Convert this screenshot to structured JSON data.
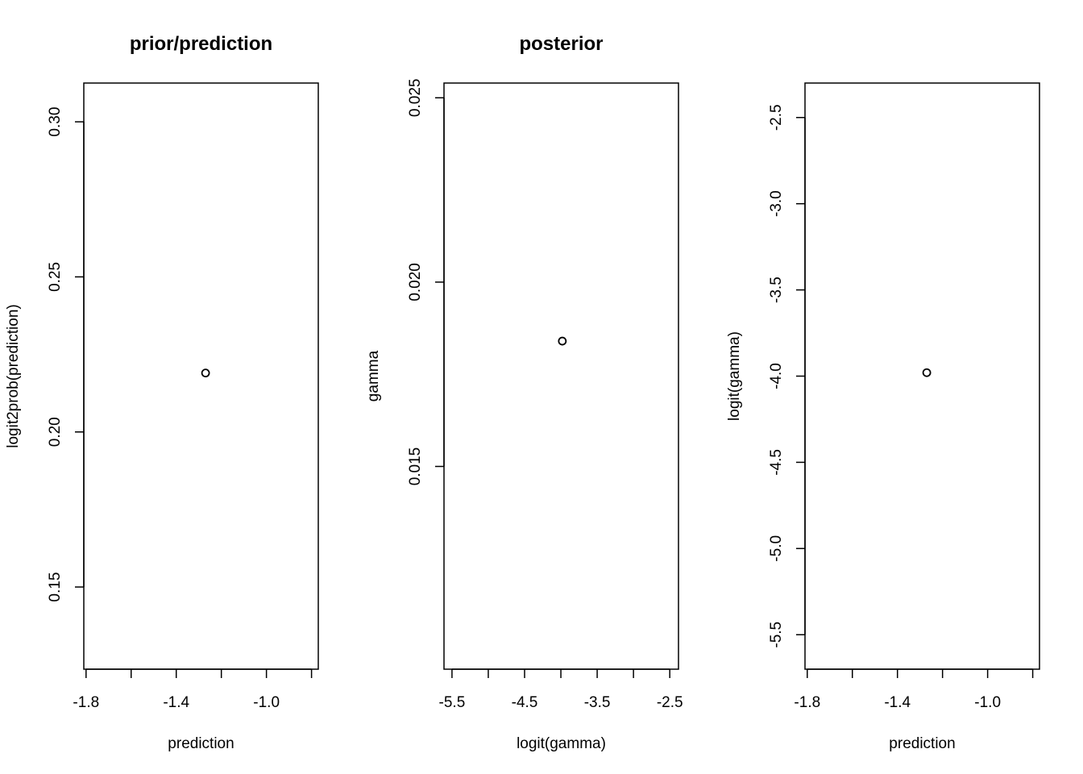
{
  "chart_data": [
    {
      "type": "scatter",
      "title": "prior/prediction",
      "xlabel": "prediction",
      "ylabel": "logit2prob(prediction)",
      "xlim": [
        -1.81,
        -0.77
      ],
      "ylim": [
        0.1235,
        0.3125
      ],
      "xticks": [
        -1.8,
        -1.6,
        -1.4,
        -1.2,
        -1.0,
        -0.8
      ],
      "xtick_labels": [
        "-1.8",
        "",
        "-1.4",
        "",
        "-1.0",
        ""
      ],
      "yticks": [
        0.15,
        0.2,
        0.25,
        0.3
      ],
      "ytick_labels": [
        "0.15",
        "0.20",
        "0.25",
        "0.30"
      ],
      "points": [
        {
          "x": -1.27,
          "y": 0.219
        }
      ],
      "grid": false
    },
    {
      "type": "scatter",
      "title": "posterior",
      "xlabel": "logit(gamma)",
      "ylabel": "gamma",
      "xlim": [
        -5.61,
        -2.38
      ],
      "ylim": [
        0.0095,
        0.0254
      ],
      "xticks": [
        -5.5,
        -5.0,
        -4.5,
        -4.0,
        -3.5,
        -3.0,
        -2.5
      ],
      "xtick_labels": [
        "-5.5",
        "",
        "-4.5",
        "",
        "-3.5",
        "",
        "-2.5"
      ],
      "yticks": [
        0.015,
        0.02,
        0.025
      ],
      "ytick_labels": [
        "0.015",
        "0.020",
        "0.025"
      ],
      "points": [
        {
          "x": -3.98,
          "y": 0.0184
        }
      ],
      "grid": false
    },
    {
      "type": "scatter",
      "title": "",
      "xlabel": "prediction",
      "ylabel": "logit(gamma)",
      "xlim": [
        -1.81,
        -0.77
      ],
      "ylim": [
        -5.7,
        -2.3
      ],
      "xticks": [
        -1.8,
        -1.6,
        -1.4,
        -1.2,
        -1.0,
        -0.8
      ],
      "xtick_labels": [
        "-1.8",
        "",
        "-1.4",
        "",
        "-1.0",
        ""
      ],
      "yticks": [
        -5.5,
        -5.0,
        -4.5,
        -4.0,
        -3.5,
        -3.0,
        -2.5
      ],
      "ytick_labels": [
        "-5.5",
        "-5.0",
        "-4.5",
        "-4.0",
        "-3.5",
        "-3.0",
        "-2.5"
      ],
      "points": [
        {
          "x": -1.27,
          "y": -3.98
        }
      ],
      "grid": false
    }
  ]
}
